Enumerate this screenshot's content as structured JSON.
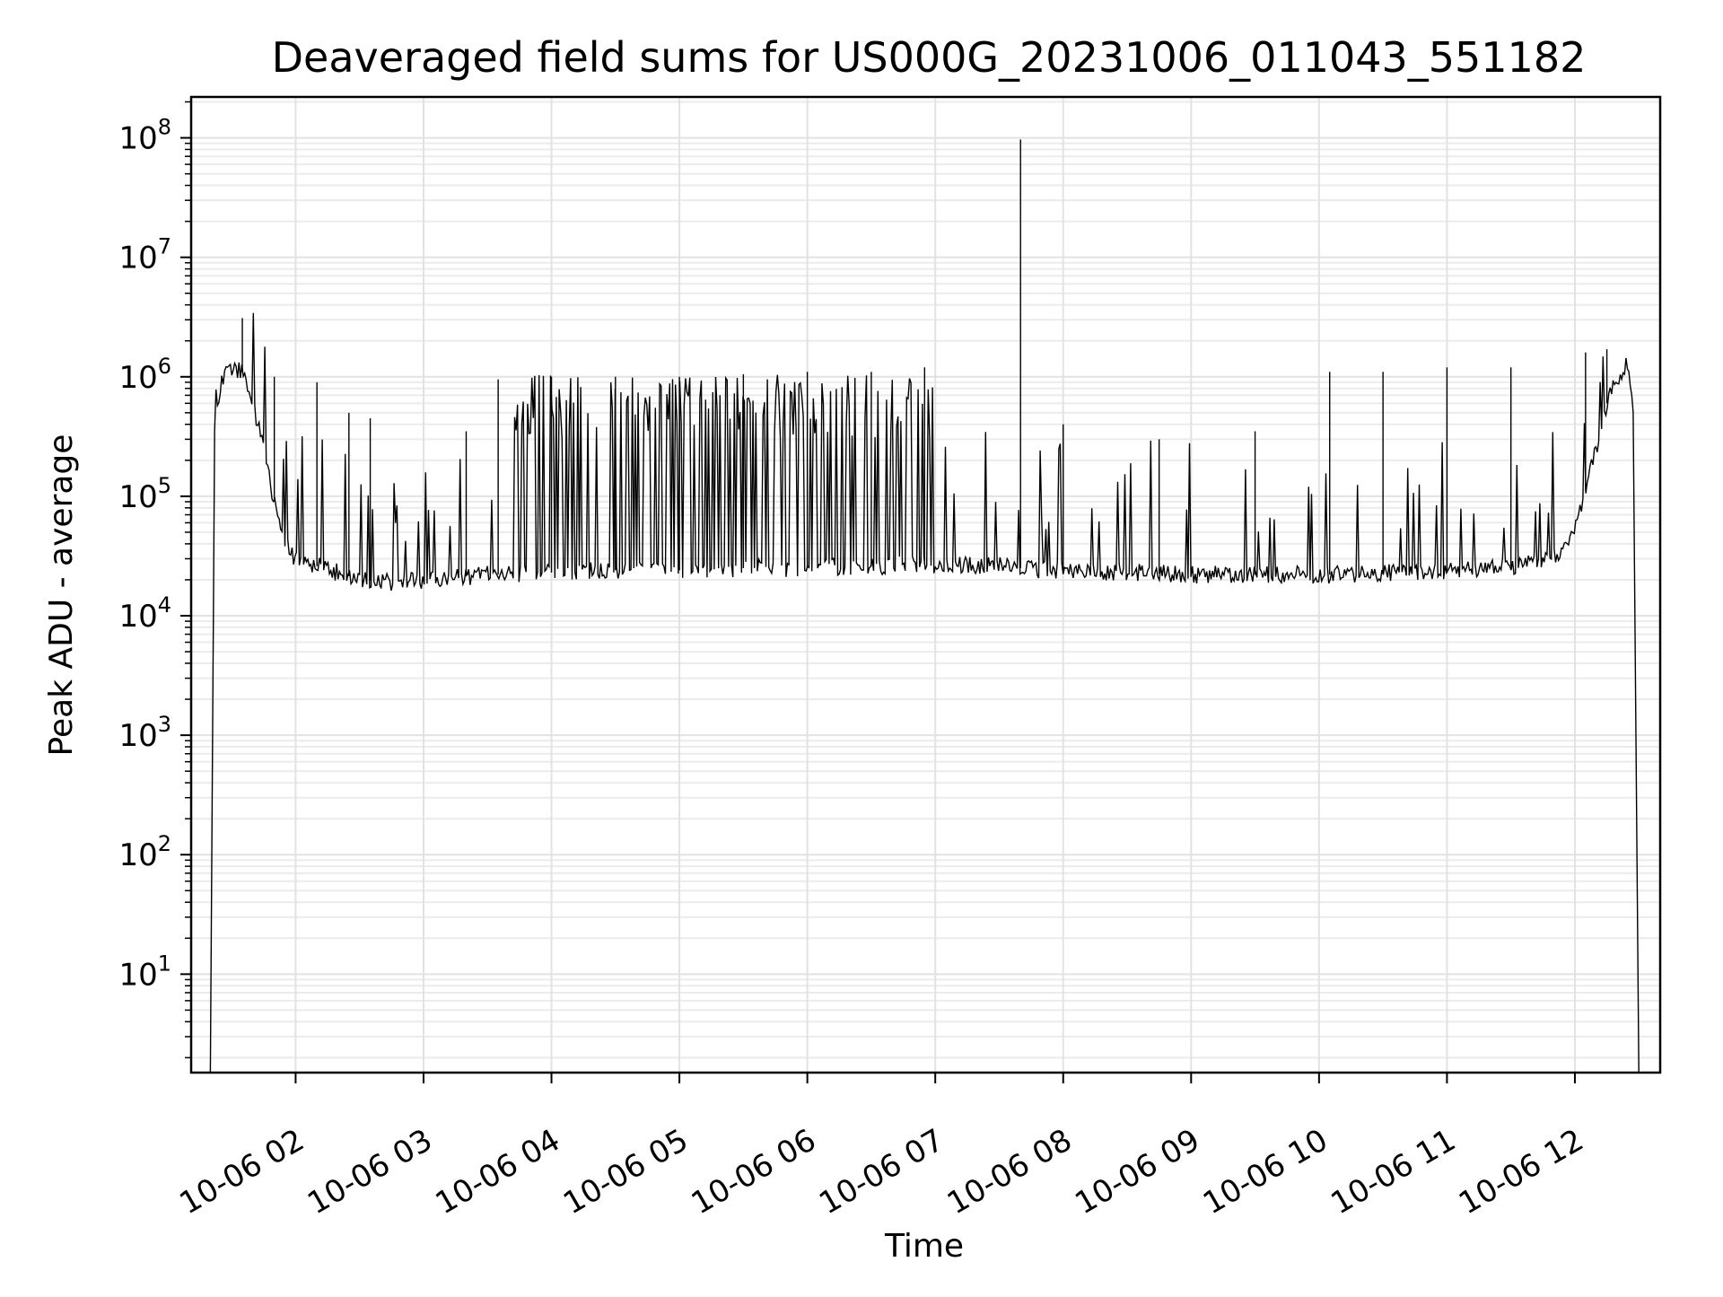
{
  "chart_data": {
    "type": "line",
    "title": "Deaveraged field sums for US000G_20231006_011043_551182",
    "xlabel": "Time",
    "ylabel": "Peak ADU - average",
    "yscale": "log",
    "ylim": [
      1.5,
      220000000.0
    ],
    "xlim": [
      "2023-10-06 01:11",
      "2023-10-06 12:40"
    ],
    "grid": true,
    "xticks": [
      {
        "value": "2023-10-06 02:00",
        "label": "10-06 02"
      },
      {
        "value": "2023-10-06 03:00",
        "label": "10-06 03"
      },
      {
        "value": "2023-10-06 04:00",
        "label": "10-06 04"
      },
      {
        "value": "2023-10-06 05:00",
        "label": "10-06 05"
      },
      {
        "value": "2023-10-06 06:00",
        "label": "10-06 06"
      },
      {
        "value": "2023-10-06 07:00",
        "label": "10-06 07"
      },
      {
        "value": "2023-10-06 08:00",
        "label": "10-06 08"
      },
      {
        "value": "2023-10-06 09:00",
        "label": "10-06 09"
      },
      {
        "value": "2023-10-06 10:00",
        "label": "10-06 10"
      },
      {
        "value": "2023-10-06 11:00",
        "label": "10-06 11"
      },
      {
        "value": "2023-10-06 12:00",
        "label": "10-06 12"
      }
    ],
    "yticks": [
      {
        "value": 10,
        "base": "10",
        "exp": "1"
      },
      {
        "value": 100,
        "base": "10",
        "exp": "2"
      },
      {
        "value": 1000,
        "base": "10",
        "exp": "3"
      },
      {
        "value": 10000,
        "base": "10",
        "exp": "4"
      },
      {
        "value": 100000,
        "base": "10",
        "exp": "5"
      },
      {
        "value": 1000000,
        "base": "10",
        "exp": "6"
      },
      {
        "value": 10000000,
        "base": "10",
        "exp": "7"
      },
      {
        "value": 100000000,
        "base": "10",
        "exp": "8"
      }
    ],
    "series": [
      {
        "color": "#000000",
        "x": [
          "2023-10-06 01:20",
          "2023-10-06 01:22",
          "2023-10-06 01:25",
          "2023-10-06 01:30",
          "2023-10-06 01:35",
          "2023-10-06 01:40",
          "2023-10-06 01:45",
          "2023-10-06 01:50",
          "2023-10-06 01:55",
          "2023-10-06 02:00",
          "2023-10-06 02:10",
          "2023-10-06 02:20",
          "2023-10-06 02:30",
          "2023-10-06 02:45",
          "2023-10-06 03:00",
          "2023-10-06 03:15",
          "2023-10-06 03:30",
          "2023-10-06 04:00",
          "2023-10-06 04:30",
          "2023-10-06 05:00",
          "2023-10-06 05:30",
          "2023-10-06 06:00",
          "2023-10-06 06:30",
          "2023-10-06 07:00",
          "2023-10-06 07:30",
          "2023-10-06 07:40",
          "2023-10-06 08:00",
          "2023-10-06 08:30",
          "2023-10-06 09:00",
          "2023-10-06 09:30",
          "2023-10-06 10:00",
          "2023-10-06 10:30",
          "2023-10-06 11:00",
          "2023-10-06 11:30",
          "2023-10-06 11:50",
          "2023-10-06 12:00",
          "2023-10-06 12:10",
          "2023-10-06 12:15",
          "2023-10-06 12:20",
          "2023-10-06 12:25",
          "2023-10-06 12:28",
          "2023-10-06 12:30"
        ],
        "y": [
          1.5,
          300000.0,
          900000.0,
          1200000.0,
          1100000.0,
          600000.0,
          250000.0,
          90000.0,
          40000.0,
          30000.0,
          26000.0,
          23000.0,
          20000.0,
          19000.0,
          20000.0,
          21000.0,
          22000.0,
          23000.0,
          24000.0,
          24000.0,
          25000.0,
          25000.0,
          26000.0,
          27000.0,
          26000.0,
          25000.0,
          24000.0,
          23000.0,
          22000.0,
          22000.0,
          22000.0,
          23000.0,
          24000.0,
          26000.0,
          30000.0,
          50000.0,
          250000.0,
          600000.0,
          1000000.0,
          1300000.0,
          400000.0,
          1.5
        ],
        "spikes": [
          {
            "x": "2023-10-06 01:35",
            "y": 3100000.0
          },
          {
            "x": "2023-10-06 01:50",
            "y": 1000000.0
          },
          {
            "x": "2023-10-06 02:10",
            "y": 900000.0
          },
          {
            "x": "2023-10-06 02:25",
            "y": 500000.0
          },
          {
            "x": "2023-10-06 02:35",
            "y": 450000.0
          },
          {
            "x": "2023-10-06 03:20",
            "y": 350000.0
          },
          {
            "x": "2023-10-06 03:35",
            "y": 950000.0
          },
          {
            "x": "2023-10-06 04:00",
            "y": 1000000.0
          },
          {
            "x": "2023-10-06 04:30",
            "y": 1000000.0
          },
          {
            "x": "2023-10-06 05:00",
            "y": 1000000.0
          },
          {
            "x": "2023-10-06 05:30",
            "y": 1050000.0
          },
          {
            "x": "2023-10-06 06:00",
            "y": 1100000.0
          },
          {
            "x": "2023-10-06 06:30",
            "y": 1100000.0
          },
          {
            "x": "2023-10-06 06:55",
            "y": 1200000.0
          },
          {
            "x": "2023-10-06 07:40",
            "y": 97000000.0
          },
          {
            "x": "2023-10-06 08:00",
            "y": 400000.0
          },
          {
            "x": "2023-10-06 08:45",
            "y": 300000.0
          },
          {
            "x": "2023-10-06 09:30",
            "y": 350000.0
          },
          {
            "x": "2023-10-06 10:05",
            "y": 1100000.0
          },
          {
            "x": "2023-10-06 10:30",
            "y": 1100000.0
          },
          {
            "x": "2023-10-06 11:00",
            "y": 1200000.0
          },
          {
            "x": "2023-10-06 11:30",
            "y": 1200000.0
          },
          {
            "x": "2023-10-06 12:05",
            "y": 1600000.0
          },
          {
            "x": "2023-10-06 12:15",
            "y": 1700000.0
          }
        ]
      }
    ]
  }
}
